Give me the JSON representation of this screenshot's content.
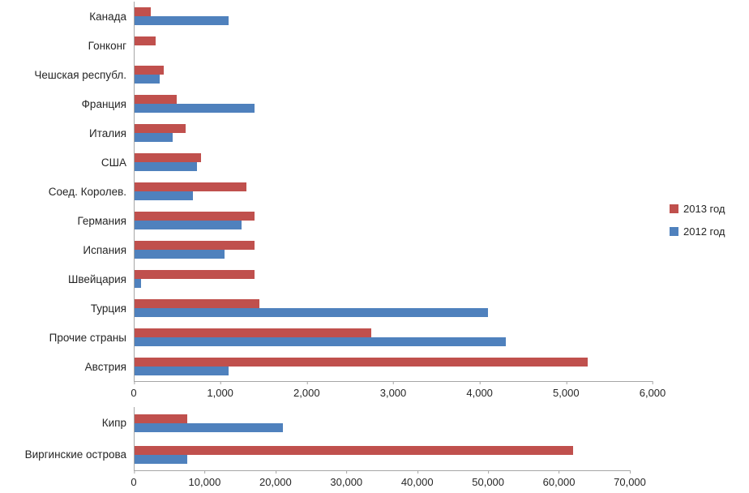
{
  "chart_data": [
    {
      "type": "bar",
      "orientation": "horizontal",
      "title": "",
      "xlabel": "",
      "ylabel": "",
      "categories": [
        "Канада",
        "Гонконг",
        "Чешская республ.",
        "Франция",
        "Италия",
        "США",
        "Соед. Королев.",
        "Германия",
        "Испания",
        "Швейцария",
        "Турция",
        "Прочие страны",
        "Австрия"
      ],
      "series": [
        {
          "name": "2013 год",
          "color": "#C0504D",
          "values": [
            200,
            250,
            350,
            500,
            600,
            780,
            1300,
            1400,
            1400,
            1400,
            1450,
            2750,
            5250
          ]
        },
        {
          "name": "2012 год",
          "color": "#4F81BD",
          "values": [
            1100,
            0,
            300,
            1400,
            450,
            730,
            680,
            1250,
            1050,
            80,
            4100,
            4300,
            1100
          ]
        }
      ],
      "xlim": [
        0,
        6000
      ],
      "ticks": [
        "0",
        "1,000",
        "2,000",
        "3,000",
        "4,000",
        "5,000",
        "6,000"
      ],
      "grid": false,
      "legend_position": "right"
    },
    {
      "type": "bar",
      "orientation": "horizontal",
      "title": "",
      "xlabel": "",
      "ylabel": "",
      "categories": [
        "Кипр",
        "Виргинские острова"
      ],
      "series": [
        {
          "name": "2013 год",
          "color": "#C0504D",
          "values": [
            7500,
            62000
          ]
        },
        {
          "name": "2012 год",
          "color": "#4F81BD",
          "values": [
            21000,
            7500
          ]
        }
      ],
      "xlim": [
        0,
        70000
      ],
      "ticks": [
        "0",
        "10,000",
        "20,000",
        "30,000",
        "40,000",
        "50,000",
        "60,000",
        "70,000"
      ],
      "grid": false,
      "legend_position": "none"
    }
  ],
  "legend": {
    "items": [
      {
        "label": "2013 год",
        "color": "#C0504D"
      },
      {
        "label": "2012 год",
        "color": "#4F81BD"
      }
    ]
  }
}
